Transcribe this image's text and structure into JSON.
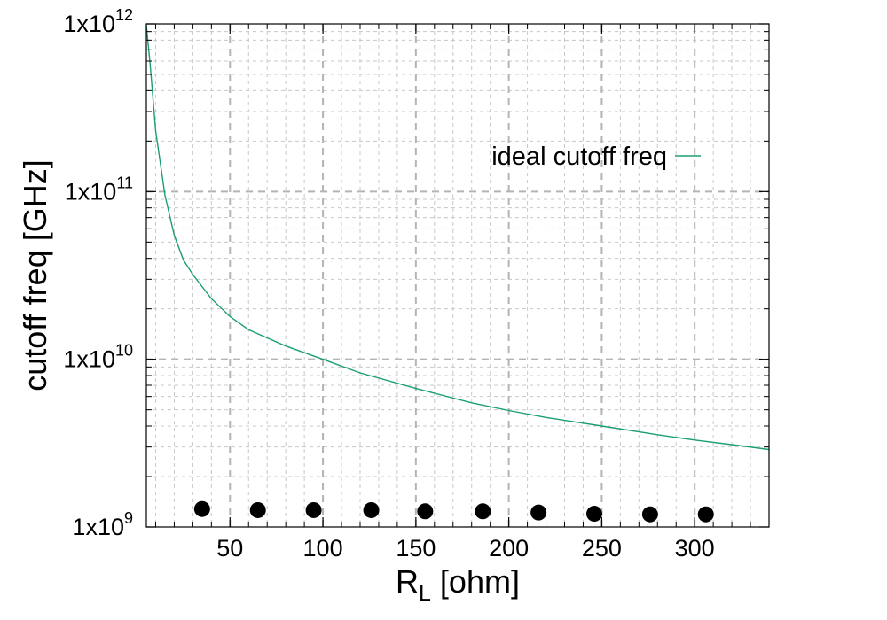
{
  "chart_data": {
    "type": "line",
    "title": "",
    "xlabel": "R",
    "xlabel_subscript": "L",
    "xlabel_suffix": " [ohm]",
    "ylabel": "cutoff freq [GHz]",
    "xlim": [
      5,
      340
    ],
    "ylim": [
      1000000000,
      1000000000000
    ],
    "yscale": "log",
    "grid": true,
    "legend_position": "top-right",
    "x_ticks": [
      50,
      100,
      150,
      200,
      250,
      300
    ],
    "y_ticks": [
      {
        "value": 1000000000,
        "base": "1x10",
        "exp": "9"
      },
      {
        "value": 10000000000,
        "base": "1x10",
        "exp": "10"
      },
      {
        "value": 100000000000,
        "base": "1x10",
        "exp": "11"
      },
      {
        "value": 1000000000000,
        "base": "1x10",
        "exp": "12"
      }
    ],
    "series": [
      {
        "name": "ideal cutoff freq",
        "kind": "line",
        "color": "#1a9e77",
        "x": [
          5,
          7,
          10,
          15,
          20,
          25,
          30,
          40,
          50,
          60,
          80,
          100,
          120,
          150,
          180,
          200,
          220,
          250,
          280,
          300,
          320,
          340
        ],
        "y": [
          980000000000,
          580000000000,
          230000000000,
          95000000000,
          55000000000,
          39000000000,
          32000000000,
          23000000000,
          18000000000,
          15000000000,
          12000000000,
          10000000000,
          8300000000,
          6700000000,
          5500000000,
          4950000000,
          4500000000,
          4000000000,
          3550000000,
          3300000000,
          3100000000,
          2900000000
        ]
      },
      {
        "name": "",
        "kind": "scatter",
        "color": "#000000",
        "x": [
          35,
          65,
          95,
          126,
          155,
          186,
          216,
          246,
          276,
          306
        ],
        "y": [
          1280000000,
          1260000000,
          1260000000,
          1260000000,
          1240000000,
          1240000000,
          1220000000,
          1200000000,
          1190000000,
          1190000000
        ]
      }
    ]
  }
}
